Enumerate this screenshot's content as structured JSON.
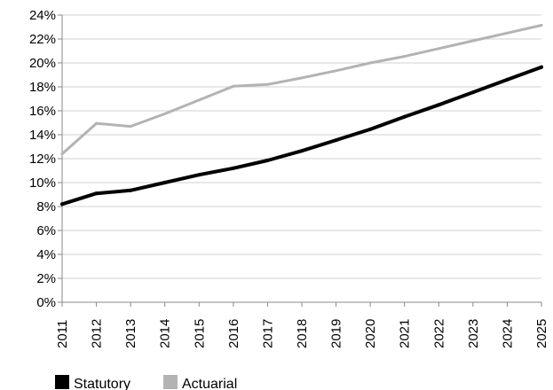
{
  "chart_data": {
    "type": "line",
    "title": "",
    "xlabel": "",
    "ylabel": "",
    "x": [
      "2011",
      "2012",
      "2013",
      "2014",
      "2015",
      "2016",
      "2017",
      "2018",
      "2019",
      "2020",
      "2021",
      "2022",
      "2023",
      "2024",
      "2025"
    ],
    "ylim": [
      0,
      24
    ],
    "y_ticks": [
      "0%",
      "2%",
      "4%",
      "6%",
      "8%",
      "10%",
      "12%",
      "14%",
      "16%",
      "18%",
      "20%",
      "22%",
      "24%"
    ],
    "grid": true,
    "legend_position": "bottom-left",
    "series": [
      {
        "name": "Statutory",
        "color": "#000000",
        "values": [
          8.2,
          9.1,
          9.35,
          10.0,
          10.65,
          11.2,
          11.85,
          12.65,
          13.55,
          14.45,
          15.5,
          16.5,
          17.55,
          18.6,
          19.65
        ]
      },
      {
        "name": "Actuarial",
        "color": "#b3b3b3",
        "values": [
          12.4,
          14.95,
          14.7,
          15.75,
          16.9,
          18.05,
          18.2,
          18.75,
          19.35,
          20.0,
          20.55,
          21.2,
          21.85,
          22.5,
          23.15
        ]
      }
    ]
  }
}
